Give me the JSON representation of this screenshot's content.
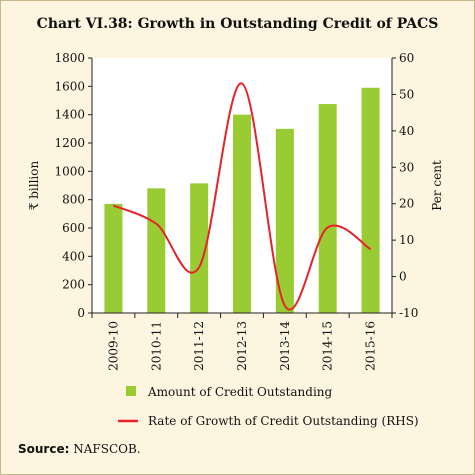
{
  "title": "Chart VI.38: Growth in Outstanding Credit of PACS",
  "source_label": "Source:",
  "source_value": "NAFSCOB.",
  "chart_data": {
    "type": "bar",
    "categories": [
      "2009-10",
      "2010-11",
      "2011-12",
      "2012-13",
      "2013-14",
      "2014-15",
      "2015-16"
    ],
    "series": [
      {
        "name": "Amount of Credit Outstanding",
        "type": "bar",
        "axis": "left",
        "color": "#99cc33",
        "values": [
          770,
          880,
          915,
          1400,
          1300,
          1475,
          1590
        ]
      },
      {
        "name": "Rate of Growth of Credit Outstanding (RHS)",
        "type": "line",
        "axis": "right",
        "color": "#e8222a",
        "values": [
          19.5,
          14.5,
          2.6,
          53,
          -8,
          13.5,
          7.5
        ]
      }
    ],
    "ylabel": "₹ billion",
    "y2label": "Per cent",
    "ylim": [
      0,
      1800
    ],
    "y2lim": [
      -10,
      60
    ],
    "yticks": [
      0,
      200,
      400,
      600,
      800,
      1000,
      1200,
      1400,
      1600,
      1800
    ],
    "y2ticks": [
      -10,
      0,
      10,
      20,
      30,
      40,
      50,
      60
    ],
    "legend_position": "bottom",
    "grid": false
  }
}
